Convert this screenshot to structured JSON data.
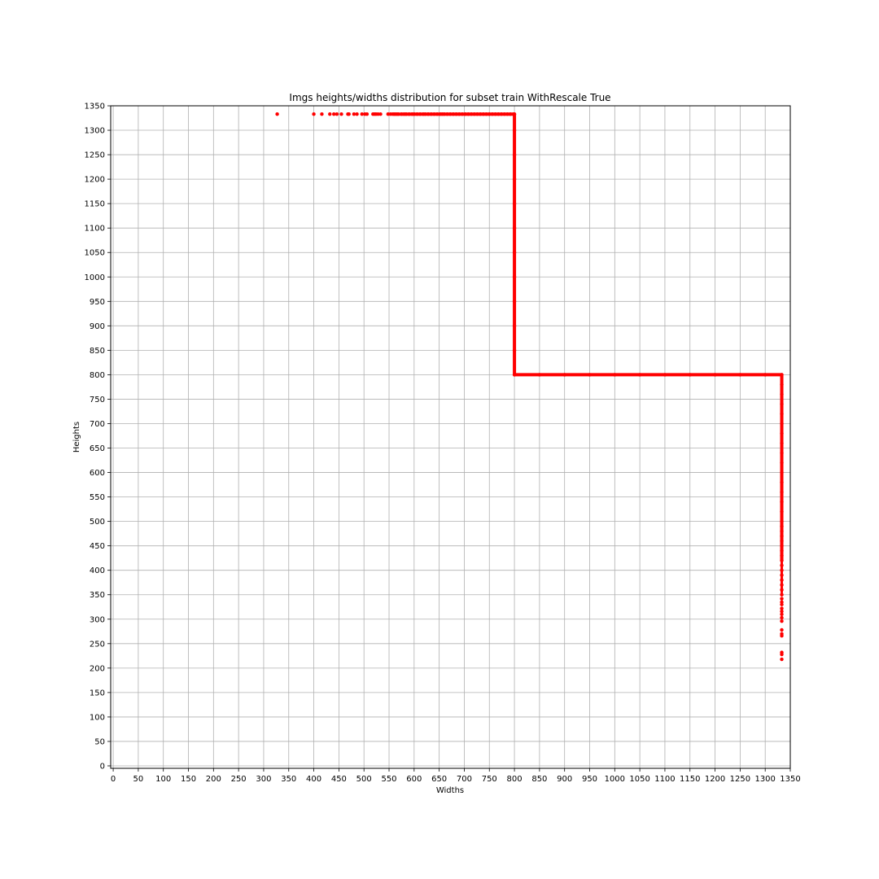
{
  "chart_data": {
    "type": "scatter",
    "title": "Imgs heights/widths distribution for subset train WithRescale True",
    "xlabel": "Widths",
    "ylabel": "Heights",
    "xlim": [
      -5,
      1350
    ],
    "ylim": [
      -5,
      1350
    ],
    "xticks": [
      0,
      50,
      100,
      150,
      200,
      250,
      300,
      350,
      400,
      450,
      500,
      550,
      600,
      650,
      700,
      750,
      800,
      850,
      900,
      950,
      1000,
      1050,
      1100,
      1150,
      1200,
      1250,
      1300,
      1350
    ],
    "yticks": [
      0,
      50,
      100,
      150,
      200,
      250,
      300,
      350,
      400,
      450,
      500,
      550,
      600,
      650,
      700,
      750,
      800,
      850,
      900,
      950,
      1000,
      1050,
      1100,
      1150,
      1200,
      1250,
      1300,
      1350
    ],
    "grid": true,
    "marker_color": "#ff0000",
    "series": [
      {
        "points": [
          [
            327,
            1333
          ],
          [
            400,
            1333
          ],
          [
            416,
            1333
          ],
          [
            432,
            1333
          ],
          [
            440,
            1333
          ],
          [
            446,
            1333
          ],
          [
            455,
            1333
          ],
          [
            468,
            1333
          ],
          [
            470,
            1333
          ],
          [
            480,
            1333
          ],
          [
            486,
            1333
          ],
          [
            496,
            1333
          ],
          [
            502,
            1333
          ],
          [
            506,
            1333
          ],
          [
            518,
            1333
          ],
          [
            521,
            1333
          ],
          [
            524,
            1333
          ],
          [
            528,
            1333
          ],
          [
            533,
            1333
          ],
          [
            548,
            1333
          ],
          [
            553,
            1333
          ],
          [
            557,
            1333
          ],
          [
            560,
            1333
          ],
          [
            564,
            1333
          ],
          [
            568,
            1333
          ],
          [
            575,
            1333
          ],
          [
            580,
            1333
          ],
          [
            584,
            1333
          ],
          [
            590,
            1333
          ],
          [
            596,
            1333
          ],
          [
            600,
            1333
          ],
          [
            606,
            1333
          ],
          [
            612,
            1333
          ],
          [
            618,
            1333
          ],
          [
            622,
            1333
          ],
          [
            628,
            1333
          ],
          [
            634,
            1333
          ],
          [
            640,
            1333
          ],
          [
            646,
            1333
          ],
          [
            652,
            1333
          ],
          [
            656,
            1333
          ],
          [
            660,
            1333
          ],
          [
            666,
            1333
          ],
          [
            672,
            1333
          ],
          [
            678,
            1333
          ],
          [
            684,
            1333
          ],
          [
            690,
            1333
          ],
          [
            696,
            1333
          ],
          [
            702,
            1333
          ],
          [
            708,
            1333
          ],
          [
            714,
            1333
          ],
          [
            720,
            1333
          ],
          [
            726,
            1333
          ],
          [
            732,
            1333
          ],
          [
            738,
            1333
          ],
          [
            744,
            1333
          ],
          [
            750,
            1333
          ],
          [
            756,
            1333
          ],
          [
            762,
            1333
          ],
          [
            768,
            1333
          ],
          [
            774,
            1333
          ],
          [
            780,
            1333
          ],
          [
            786,
            1333
          ],
          [
            792,
            1333
          ],
          [
            798,
            1333
          ],
          [
            800,
            1333
          ],
          [
            800,
            1300
          ],
          [
            800,
            1250
          ],
          [
            800,
            1200
          ],
          [
            800,
            1150
          ],
          [
            800,
            1100
          ],
          [
            800,
            1050
          ],
          [
            800,
            1000
          ],
          [
            800,
            950
          ],
          [
            800,
            900
          ],
          [
            800,
            850
          ],
          [
            800,
            800
          ],
          [
            850,
            800
          ],
          [
            900,
            800
          ],
          [
            950,
            800
          ],
          [
            1000,
            800
          ],
          [
            1050,
            800
          ],
          [
            1100,
            800
          ],
          [
            1150,
            800
          ],
          [
            1200,
            800
          ],
          [
            1250,
            800
          ],
          [
            1300,
            800
          ],
          [
            1333,
            800
          ],
          [
            1333,
            780
          ],
          [
            1333,
            760
          ],
          [
            1333,
            740
          ],
          [
            1333,
            720
          ],
          [
            1333,
            700
          ],
          [
            1333,
            680
          ],
          [
            1333,
            660
          ],
          [
            1333,
            640
          ],
          [
            1333,
            620
          ],
          [
            1333,
            600
          ],
          [
            1333,
            580
          ],
          [
            1333,
            560
          ],
          [
            1333,
            540
          ],
          [
            1333,
            520
          ],
          [
            1333,
            500
          ],
          [
            1333,
            490
          ],
          [
            1333,
            480
          ],
          [
            1333,
            470
          ],
          [
            1333,
            460
          ],
          [
            1333,
            450
          ],
          [
            1333,
            440
          ],
          [
            1333,
            430
          ],
          [
            1333,
            420
          ],
          [
            1333,
            410
          ],
          [
            1333,
            400
          ],
          [
            1333,
            390
          ],
          [
            1333,
            380
          ],
          [
            1333,
            370
          ],
          [
            1333,
            360
          ],
          [
            1333,
            350
          ],
          [
            1333,
            342
          ],
          [
            1333,
            335
          ],
          [
            1333,
            330
          ],
          [
            1333,
            322
          ],
          [
            1333,
            316
          ],
          [
            1333,
            310
          ],
          [
            1333,
            303
          ],
          [
            1333,
            296
          ],
          [
            1333,
            278
          ],
          [
            1333,
            270
          ],
          [
            1333,
            266
          ],
          [
            1333,
            232
          ],
          [
            1333,
            228
          ],
          [
            1333,
            218
          ]
        ]
      }
    ]
  }
}
